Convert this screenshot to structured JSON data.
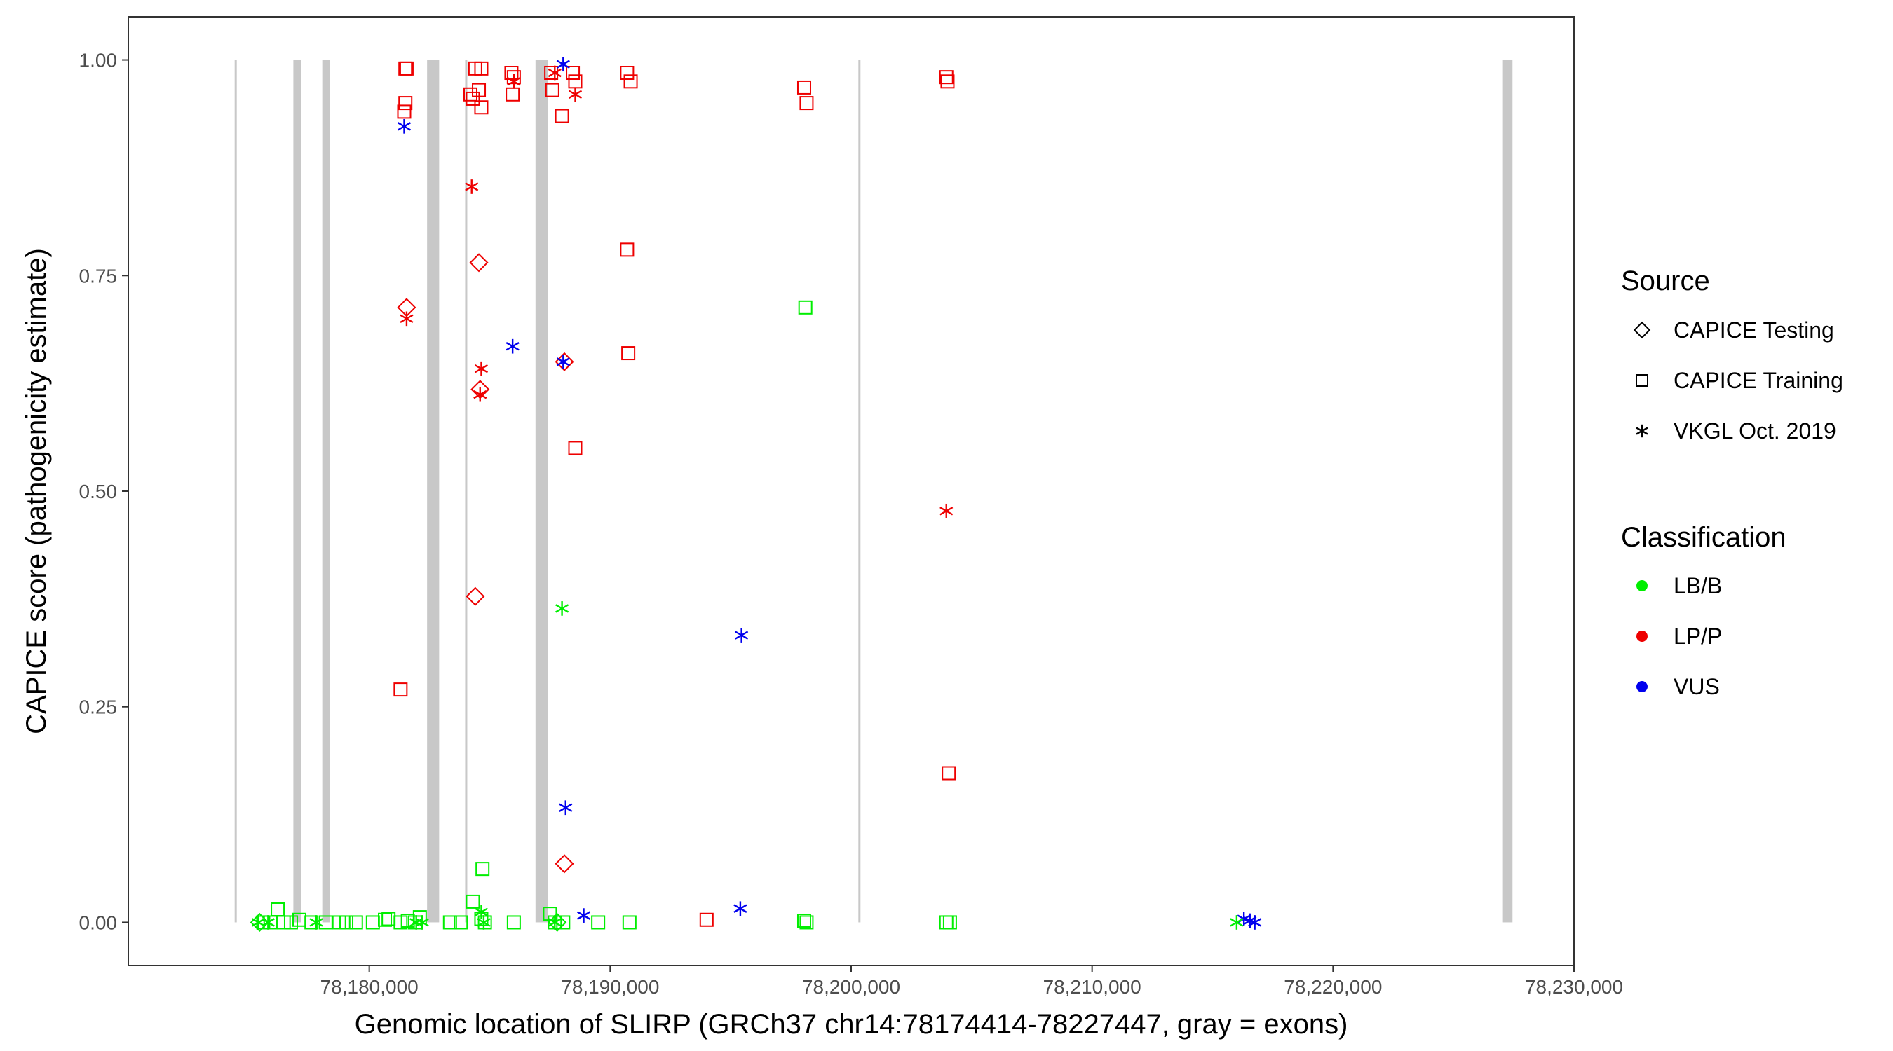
{
  "chart_data": {
    "type": "scatter",
    "xlabel": "Genomic location of SLIRP (GRCh37 chr14:78174414-78227447, gray = exons)",
    "ylabel": "CAPICE score (pathogenicity estimate)",
    "xlim": [
      78170000,
      78230000
    ],
    "ylim": [
      -0.05,
      1.05
    ],
    "x_ticks": [
      78180000,
      78190000,
      78200000,
      78210000,
      78220000,
      78230000
    ],
    "x_tick_labels": [
      "78,180,000",
      "78,190,000",
      "78,200,000",
      "78,210,000",
      "78,220,000",
      "78,230,000"
    ],
    "y_ticks": [
      0,
      0.25,
      0.5,
      0.75,
      1.0
    ],
    "y_tick_labels": [
      "0.00",
      "0.25",
      "0.50",
      "0.75",
      "1.00"
    ],
    "grid": false,
    "legend_position": "right",
    "exon_color": "#c8c8c8",
    "exons": [
      {
        "start": 78174414,
        "end": 78174480
      },
      {
        "start": 78176850,
        "end": 78177170
      },
      {
        "start": 78178050,
        "end": 78178370
      },
      {
        "start": 78182400,
        "end": 78182900
      },
      {
        "start": 78183980,
        "end": 78184060
      },
      {
        "start": 78186900,
        "end": 78187400
      },
      {
        "start": 78200300,
        "end": 78200380
      },
      {
        "start": 78227050,
        "end": 78227447
      }
    ],
    "legends": [
      {
        "title": "Source",
        "items": [
          {
            "label": "CAPICE Testing",
            "shape": "diamond"
          },
          {
            "label": "CAPICE Training",
            "shape": "square"
          },
          {
            "label": "VKGL Oct. 2019",
            "shape": "asterisk"
          }
        ]
      },
      {
        "title": "Classification",
        "items": [
          {
            "label": "LB/B",
            "color": "#00ee00"
          },
          {
            "label": "LP/P",
            "color": "#ee0000"
          },
          {
            "label": "VUS",
            "color": "#0000ee"
          }
        ]
      }
    ],
    "series": [
      {
        "class": "LP/P",
        "source": "CAPICE Training",
        "points": [
          [
            78181500,
            0.99
          ],
          [
            78181550,
            0.99
          ],
          [
            78181500,
            0.95
          ],
          [
            78181450,
            0.94
          ],
          [
            78181300,
            0.27
          ],
          [
            78184400,
            0.99
          ],
          [
            78184650,
            0.99
          ],
          [
            78184200,
            0.96
          ],
          [
            78184550,
            0.965
          ],
          [
            78184300,
            0.955
          ],
          [
            78184650,
            0.945
          ],
          [
            78185900,
            0.985
          ],
          [
            78186000,
            0.98
          ],
          [
            78185950,
            0.96
          ],
          [
            78187550,
            0.985
          ],
          [
            78187600,
            0.965
          ],
          [
            78188000,
            0.935
          ],
          [
            78188450,
            0.985
          ],
          [
            78188550,
            0.975
          ],
          [
            78190700,
            0.985
          ],
          [
            78190850,
            0.975
          ],
          [
            78190700,
            0.78
          ],
          [
            78190750,
            0.66
          ],
          [
            78188550,
            0.55
          ],
          [
            78194000,
            0.003
          ],
          [
            78198050,
            0.968
          ],
          [
            78198150,
            0.95
          ],
          [
            78203950,
            0.98
          ],
          [
            78204000,
            0.975
          ],
          [
            78204050,
            0.173
          ]
        ]
      },
      {
        "class": "LP/P",
        "source": "CAPICE Testing",
        "points": [
          [
            78181550,
            0.713
          ],
          [
            78184550,
            0.765
          ],
          [
            78184600,
            0.618
          ],
          [
            78188100,
            0.65
          ],
          [
            78184400,
            0.378
          ],
          [
            78188100,
            0.068
          ]
        ]
      },
      {
        "class": "LP/P",
        "source": "VKGL Oct. 2019",
        "points": [
          [
            78181550,
            0.7
          ],
          [
            78184250,
            0.853
          ],
          [
            78184650,
            0.642
          ],
          [
            78184600,
            0.612
          ],
          [
            78186000,
            0.975
          ],
          [
            78188550,
            0.96
          ],
          [
            78187700,
            0.985
          ],
          [
            78203950,
            0.477
          ]
        ]
      },
      {
        "class": "VUS",
        "source": "VKGL Oct. 2019",
        "points": [
          [
            78181450,
            0.923
          ],
          [
            78188050,
            0.995
          ],
          [
            78185950,
            0.668
          ],
          [
            78188050,
            0.65
          ],
          [
            78188150,
            0.133
          ],
          [
            78195450,
            0.333
          ],
          [
            78195400,
            0.016
          ],
          [
            78188900,
            0.008
          ],
          [
            78216300,
            0.004
          ],
          [
            78216550,
            0.002
          ],
          [
            78216750,
            0.0
          ]
        ]
      },
      {
        "class": "LB/B",
        "source": "CAPICE Training",
        "points": [
          [
            78175600,
            0.0
          ],
          [
            78175900,
            0.0
          ],
          [
            78176200,
            0.015
          ],
          [
            78176450,
            0.0
          ],
          [
            78176750,
            0.0
          ],
          [
            78177100,
            0.003
          ],
          [
            78177600,
            0.0
          ],
          [
            78178200,
            0.0
          ],
          [
            78178750,
            0.0
          ],
          [
            78179050,
            0.0
          ],
          [
            78179450,
            0.0
          ],
          [
            78180150,
            0.0
          ],
          [
            78180650,
            0.003
          ],
          [
            78180800,
            0.004
          ],
          [
            78181300,
            0.0
          ],
          [
            78181600,
            0.002
          ],
          [
            78181900,
            0.0
          ],
          [
            78182100,
            0.006
          ],
          [
            78183350,
            0.0
          ],
          [
            78183800,
            0.0
          ],
          [
            78184300,
            0.024
          ],
          [
            78184700,
            0.062
          ],
          [
            78184650,
            0.004
          ],
          [
            78184800,
            0.0
          ],
          [
            78186000,
            0.0
          ],
          [
            78187500,
            0.01
          ],
          [
            78187700,
            0.0
          ],
          [
            78188050,
            0.0
          ],
          [
            78189500,
            0.0
          ],
          [
            78190800,
            0.0
          ],
          [
            78198050,
            0.002
          ],
          [
            78198150,
            0.0
          ],
          [
            78198100,
            0.713
          ],
          [
            78203950,
            0.0
          ],
          [
            78204100,
            0.0
          ]
        ]
      },
      {
        "class": "LB/B",
        "source": "CAPICE Testing",
        "points": [
          [
            78175450,
            0.0
          ],
          [
            78187800,
            0.0
          ]
        ]
      },
      {
        "class": "LB/B",
        "source": "VKGL Oct. 2019",
        "points": [
          [
            78175400,
            0.0
          ],
          [
            78175800,
            0.0
          ],
          [
            78177800,
            0.0
          ],
          [
            78181950,
            0.0
          ],
          [
            78182200,
            0.0
          ],
          [
            78184650,
            0.012
          ],
          [
            78184750,
            0.0
          ],
          [
            78187700,
            0.0
          ],
          [
            78188000,
            0.364
          ],
          [
            78216000,
            0.0
          ]
        ]
      }
    ]
  }
}
